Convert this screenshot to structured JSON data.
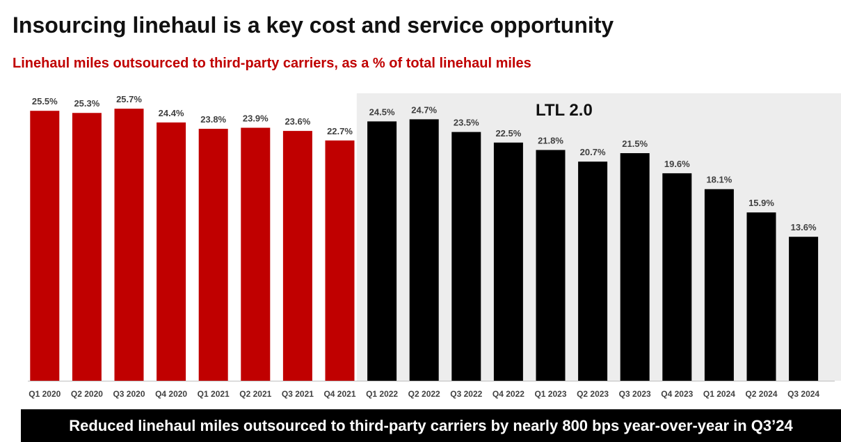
{
  "header": {
    "title": "Insourcing linehaul is a key cost and service opportunity",
    "subtitle": "Linehaul miles outsourced to third-party carriers, as a % of total linehaul miles"
  },
  "chart_data": {
    "type": "bar",
    "categories": [
      "Q1 2020",
      "Q2 2020",
      "Q3 2020",
      "Q4 2020",
      "Q1 2021",
      "Q2 2021",
      "Q3 2021",
      "Q4 2021",
      "Q1 2022",
      "Q2 2022",
      "Q3 2022",
      "Q4 2022",
      "Q1 2023",
      "Q2 2023",
      "Q3 2023",
      "Q4 2023",
      "Q1 2024",
      "Q2 2024",
      "Q3 2024"
    ],
    "values": [
      25.5,
      25.3,
      25.7,
      24.4,
      23.8,
      23.9,
      23.6,
      22.7,
      24.5,
      24.7,
      23.5,
      22.5,
      21.8,
      20.7,
      21.5,
      19.6,
      18.1,
      15.9,
      13.6
    ],
    "data_labels": [
      "25.5%",
      "25.3%",
      "25.7%",
      "24.4%",
      "23.8%",
      "23.9%",
      "23.6%",
      "22.7%",
      "24.5%",
      "24.7%",
      "23.5%",
      "22.5%",
      "21.8%",
      "20.7%",
      "21.5%",
      "19.6%",
      "18.1%",
      "15.9%",
      "13.6%"
    ],
    "ylim": [
      0,
      26.5
    ],
    "grid": false,
    "legend": "none",
    "region_label": "LTL 2.0",
    "region_start_index": 8,
    "colors": {
      "before": "#c00000",
      "after": "#000000",
      "region_background": "#ededed",
      "axis": "#bfbfbf",
      "label": "#404040"
    }
  },
  "footer": {
    "banner": "Reduced linehaul miles outsourced to third-party carriers by nearly 800 bps year-over-year in Q3’24"
  }
}
